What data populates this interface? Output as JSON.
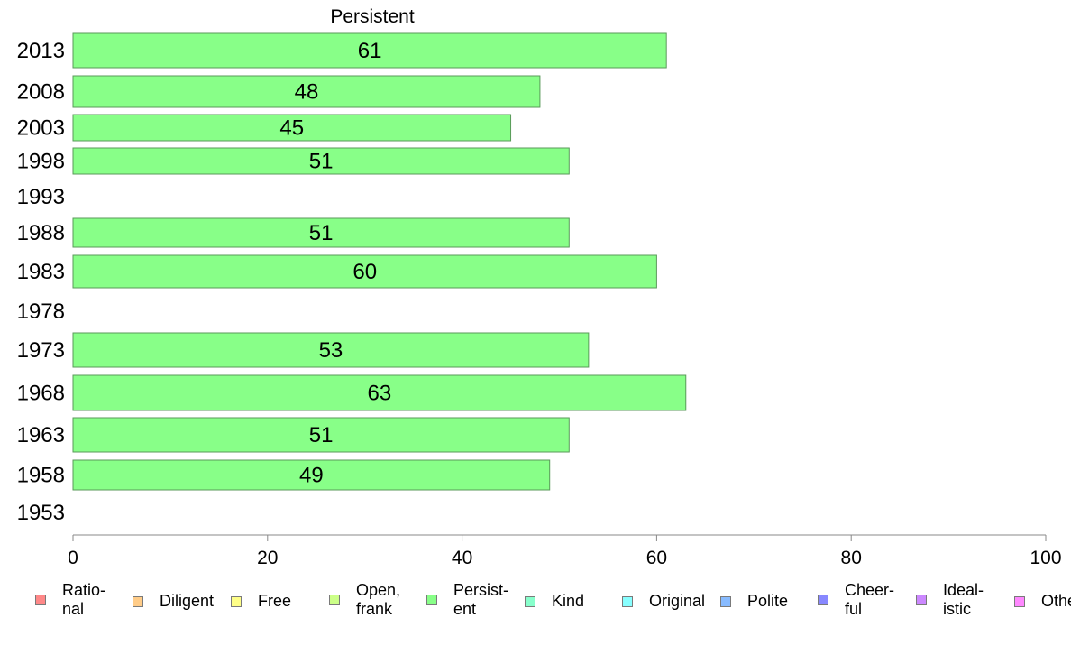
{
  "chart_data": {
    "type": "bar",
    "orientation": "horizontal",
    "title": "Persistent",
    "categories": [
      "2013",
      "2008",
      "2003",
      "1998",
      "1993",
      "1988",
      "1983",
      "1978",
      "1973",
      "1968",
      "1963",
      "1958",
      "1953"
    ],
    "values": [
      61,
      48,
      45,
      51,
      null,
      51,
      60,
      null,
      53,
      63,
      51,
      49,
      null
    ],
    "value_labels": [
      "61",
      "48",
      "45",
      "51",
      "",
      "51",
      "60",
      "",
      "53",
      "63",
      "51",
      "49",
      ""
    ],
    "series_color": "#88ff88",
    "bar_border_color": "#5a9a5a",
    "xlim": [
      0,
      100
    ],
    "x_ticks": [
      "0",
      "20",
      "40",
      "60",
      "80",
      "100"
    ],
    "legend_position": "bottom",
    "legend": [
      {
        "label": "Ratio-\nnal",
        "color": "#ff8888"
      },
      {
        "label": "Diligent",
        "color": "#ffcc88"
      },
      {
        "label": "Free",
        "color": "#ffff88"
      },
      {
        "label": "Open,\nfrank",
        "color": "#ccff88"
      },
      {
        "label": "Persist-\nent",
        "color": "#88ff88"
      },
      {
        "label": "Kind",
        "color": "#88ffcc"
      },
      {
        "label": "Original",
        "color": "#88ffff"
      },
      {
        "label": "Polite",
        "color": "#88bbff"
      },
      {
        "label": "Cheer-\nful",
        "color": "#8888ff"
      },
      {
        "label": "Ideal-\nistic",
        "color": "#cc88ff"
      },
      {
        "label": "Other",
        "color": "#ff88ff"
      }
    ]
  }
}
